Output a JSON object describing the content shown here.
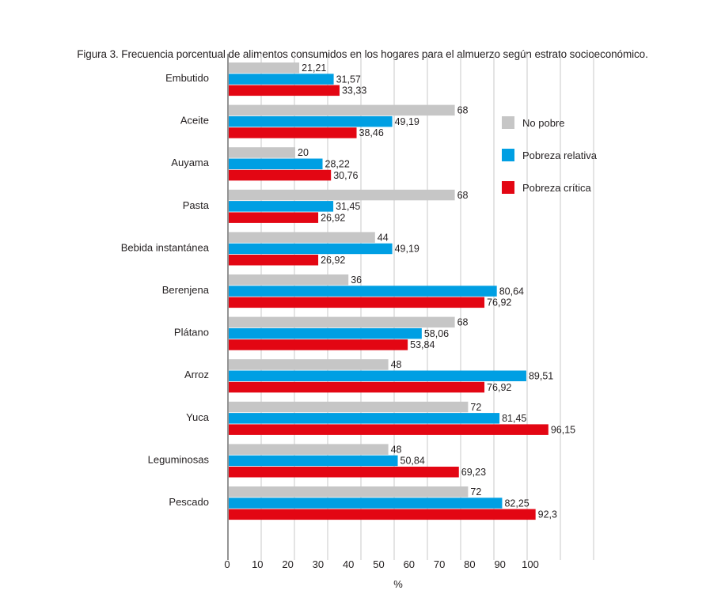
{
  "title": "Figura 3. Frecuencia porcentual de alimentos consumidos en los hogares para el almuerzo según estrato socioeconómico.",
  "chart_data": {
    "type": "bar",
    "orientation": "horizontal",
    "title": "Figura 3. Frecuencia porcentual de alimentos consumidos en los hogares para el almuerzo según estrato socioeconómico.",
    "xlabel": "%",
    "ylabel": "",
    "xlim": [
      0,
      110
    ],
    "x_ticks": [
      "0",
      "10",
      "20",
      "30",
      "40",
      "50",
      "60",
      "70",
      "80",
      "90",
      "100"
    ],
    "grid": true,
    "legend_position": "top-right",
    "categories": [
      "Embutido",
      "Aceite",
      "Auyama",
      "Pasta",
      "Bebida instantánea",
      "Berenjena",
      "Plátano",
      "Arroz",
      "Yuca",
      "Leguminosas",
      "Pescado"
    ],
    "series": [
      {
        "name": "No pobre",
        "color": "#c6c6c6",
        "values": [
          21.21,
          68,
          20,
          68,
          44,
          36,
          68,
          48,
          72,
          48,
          72
        ],
        "labels": [
          "21,21",
          "68",
          "20",
          "68",
          "44",
          "36",
          "68",
          "48",
          "72",
          "48",
          "72"
        ]
      },
      {
        "name": "Pobreza relativa",
        "color": "#009fe3",
        "values": [
          31.57,
          49.19,
          28.22,
          31.45,
          49.19,
          80.64,
          58.06,
          89.51,
          81.45,
          50.84,
          82.25
        ],
        "labels": [
          "31,57",
          "49,19",
          "28,22",
          "31,45",
          "49,19",
          "80,64",
          "58,06",
          "89,51",
          "81,45",
          "50,84",
          "82,25"
        ]
      },
      {
        "name": "Pobreza crítica",
        "color": "#e30613",
        "values": [
          33.33,
          38.46,
          30.76,
          26.92,
          26.92,
          76.92,
          53.84,
          76.92,
          96.15,
          69.23,
          92.3
        ],
        "labels": [
          "33,33",
          "38,46",
          "30,76",
          "26,92",
          "26,92",
          "76,92",
          "53,84",
          "76,92",
          "96,15",
          "69,23",
          "92,3"
        ]
      }
    ]
  }
}
